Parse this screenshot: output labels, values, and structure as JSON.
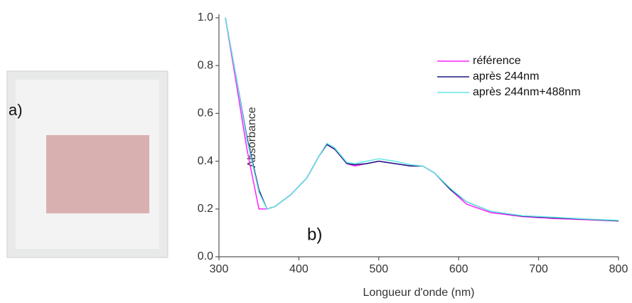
{
  "panel_a": {
    "label": "a)"
  },
  "chart_data": {
    "type": "line",
    "panel_label": "b)",
    "x_label": "Longueur d'onde (nm)",
    "y_label": "Absorbance",
    "x": [
      308,
      320,
      335,
      350,
      360,
      370,
      390,
      410,
      425,
      435,
      445,
      460,
      470,
      485,
      500,
      520,
      540,
      555,
      570,
      590,
      610,
      640,
      680,
      720,
      760,
      800
    ],
    "series": [
      {
        "name": "référence",
        "color": "#ff22ff",
        "values": [
          1.0,
          0.76,
          0.45,
          0.2,
          0.2,
          0.21,
          0.26,
          0.33,
          0.42,
          0.47,
          0.45,
          0.39,
          0.38,
          0.39,
          0.4,
          0.39,
          0.38,
          0.38,
          0.35,
          0.28,
          0.22,
          0.185,
          0.168,
          0.16,
          0.155,
          0.15
        ]
      },
      {
        "name": "après 244nm",
        "color": "#1a1a80",
        "values": [
          1.0,
          0.78,
          0.5,
          0.28,
          0.2,
          0.21,
          0.26,
          0.33,
          0.42,
          0.47,
          0.45,
          0.39,
          0.385,
          0.39,
          0.4,
          0.39,
          0.38,
          0.38,
          0.35,
          0.28,
          0.23,
          0.19,
          0.17,
          0.163,
          0.157,
          0.15
        ]
      },
      {
        "name": "après 244nm+488nm",
        "color": "#66e6e6",
        "values": [
          1.0,
          0.78,
          0.49,
          0.27,
          0.2,
          0.21,
          0.26,
          0.33,
          0.42,
          0.475,
          0.455,
          0.395,
          0.39,
          0.4,
          0.41,
          0.4,
          0.385,
          0.38,
          0.35,
          0.285,
          0.23,
          0.19,
          0.172,
          0.165,
          0.158,
          0.152
        ]
      }
    ],
    "xlim": [
      300,
      800
    ],
    "ylim": [
      0,
      1
    ],
    "xticks": [
      300,
      400,
      500,
      600,
      700,
      800
    ],
    "yticks": [
      {
        "value": 0,
        "label": "0.0"
      },
      {
        "value": 0.2,
        "label": "0.2"
      },
      {
        "value": 0.4,
        "label": "0.4"
      },
      {
        "value": 0.6,
        "label": "0.6"
      },
      {
        "value": 0.8,
        "label": "0.8"
      },
      {
        "value": 1,
        "label": "1.0"
      }
    ],
    "legend": "upper right"
  }
}
